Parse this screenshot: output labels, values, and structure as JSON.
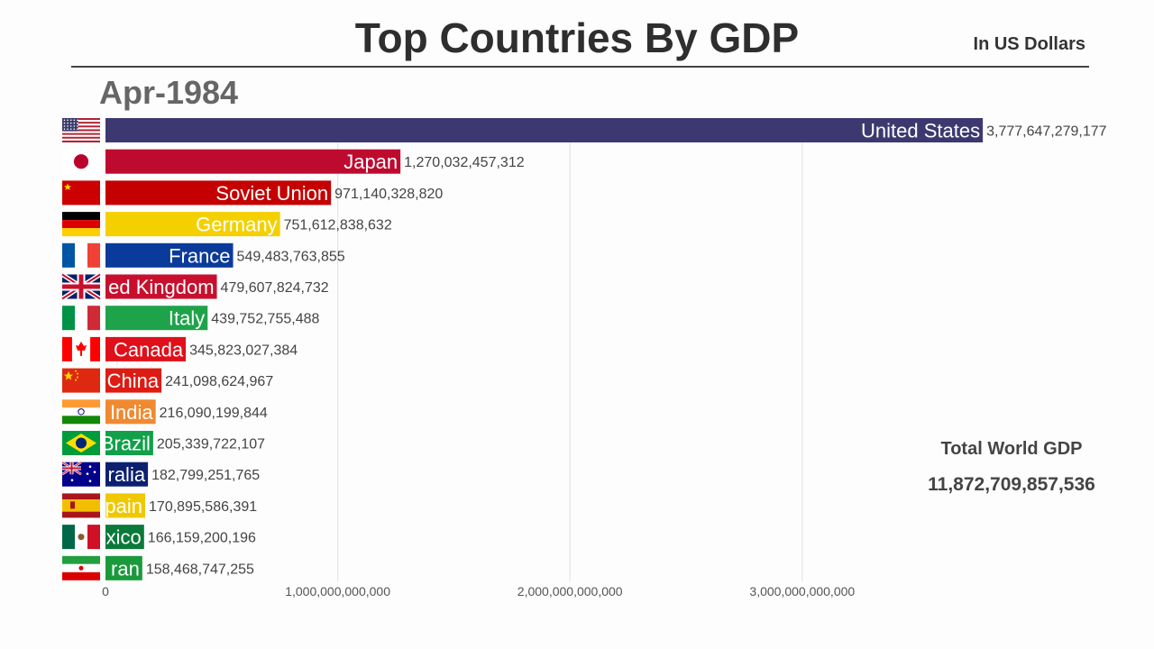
{
  "header": {
    "title": "Top Countries By GDP",
    "unit_label": "In US Dollars",
    "date": "Apr-1984"
  },
  "total": {
    "label": "Total World GDP",
    "value": "11,872,709,857,536"
  },
  "chart_data": {
    "type": "bar",
    "orientation": "horizontal",
    "title": "Top Countries By GDP",
    "subtitle": "In US Dollars",
    "period": "Apr-1984",
    "xlabel": "",
    "ylabel": "",
    "xlim": [
      0,
      4300000000000
    ],
    "x_ticks": [
      0,
      1000000000000,
      2000000000000,
      3000000000000
    ],
    "x_tick_labels": [
      "0",
      "1,000,000,000,000",
      "2,000,000,000,000",
      "3,000,000,000,000"
    ],
    "grid": true,
    "categories": [
      "United States",
      "Japan",
      "Soviet Union",
      "Germany",
      "France",
      "United Kingdom",
      "Italy",
      "Canada",
      "China",
      "India",
      "Brazil",
      "Australia",
      "Spain",
      "Mexico",
      "Iran"
    ],
    "bar_labels": [
      "United States",
      "Japan",
      "Soviet Union",
      "Germany",
      "France",
      "ed Kingdom",
      "Italy",
      "Canada",
      "China",
      "India",
      "Brazil",
      "ralia",
      "pain",
      "xico",
      "ran"
    ],
    "values": [
      3777647279177,
      1270032457312,
      971140328820,
      751612838632,
      549483763855,
      479607824732,
      439752755488,
      345823027384,
      241098624967,
      216090199844,
      205339722107,
      182799251765,
      170895586391,
      166159200196,
      158468747255
    ],
    "value_labels": [
      "3,777,647,279,177",
      "1,270,032,457,312",
      "971,140,328,820",
      "751,612,838,632",
      "549,483,763,855",
      "479,607,824,732",
      "439,752,755,488",
      "345,823,027,384",
      "241,098,624,967",
      "216,090,199,844",
      "205,339,722,107",
      "182,799,251,765",
      "170,895,586,391",
      "166,159,200,196",
      "158,468,747,255"
    ],
    "colors": [
      "#3d3970",
      "#bf0a30",
      "#c40000",
      "#f5d000",
      "#0a3a9a",
      "#c8102e",
      "#1fa34a",
      "#e0101a",
      "#dd1c14",
      "#f08a30",
      "#12a04a",
      "#0d2070",
      "#f0c800",
      "#0a7a3a",
      "#1a9a3a"
    ],
    "label_colors": [
      "#ffffff",
      "#ffffff",
      "#ffffff",
      "#ffffff",
      "#ffffff",
      "#ffffff",
      "#ffffff",
      "#ffffff",
      "#ffffff",
      "#ffffff",
      "#ffffff",
      "#ffffff",
      "#ffffff",
      "#ffffff",
      "#ffffff"
    ],
    "flags": [
      "flag-us",
      "flag-jp",
      "flag-su",
      "flag-de",
      "flag-fr",
      "flag-gb",
      "flag-it",
      "flag-ca",
      "flag-cn",
      "flag-in",
      "flag-br",
      "flag-au",
      "flag-es",
      "flag-mx",
      "flag-ir"
    ]
  }
}
